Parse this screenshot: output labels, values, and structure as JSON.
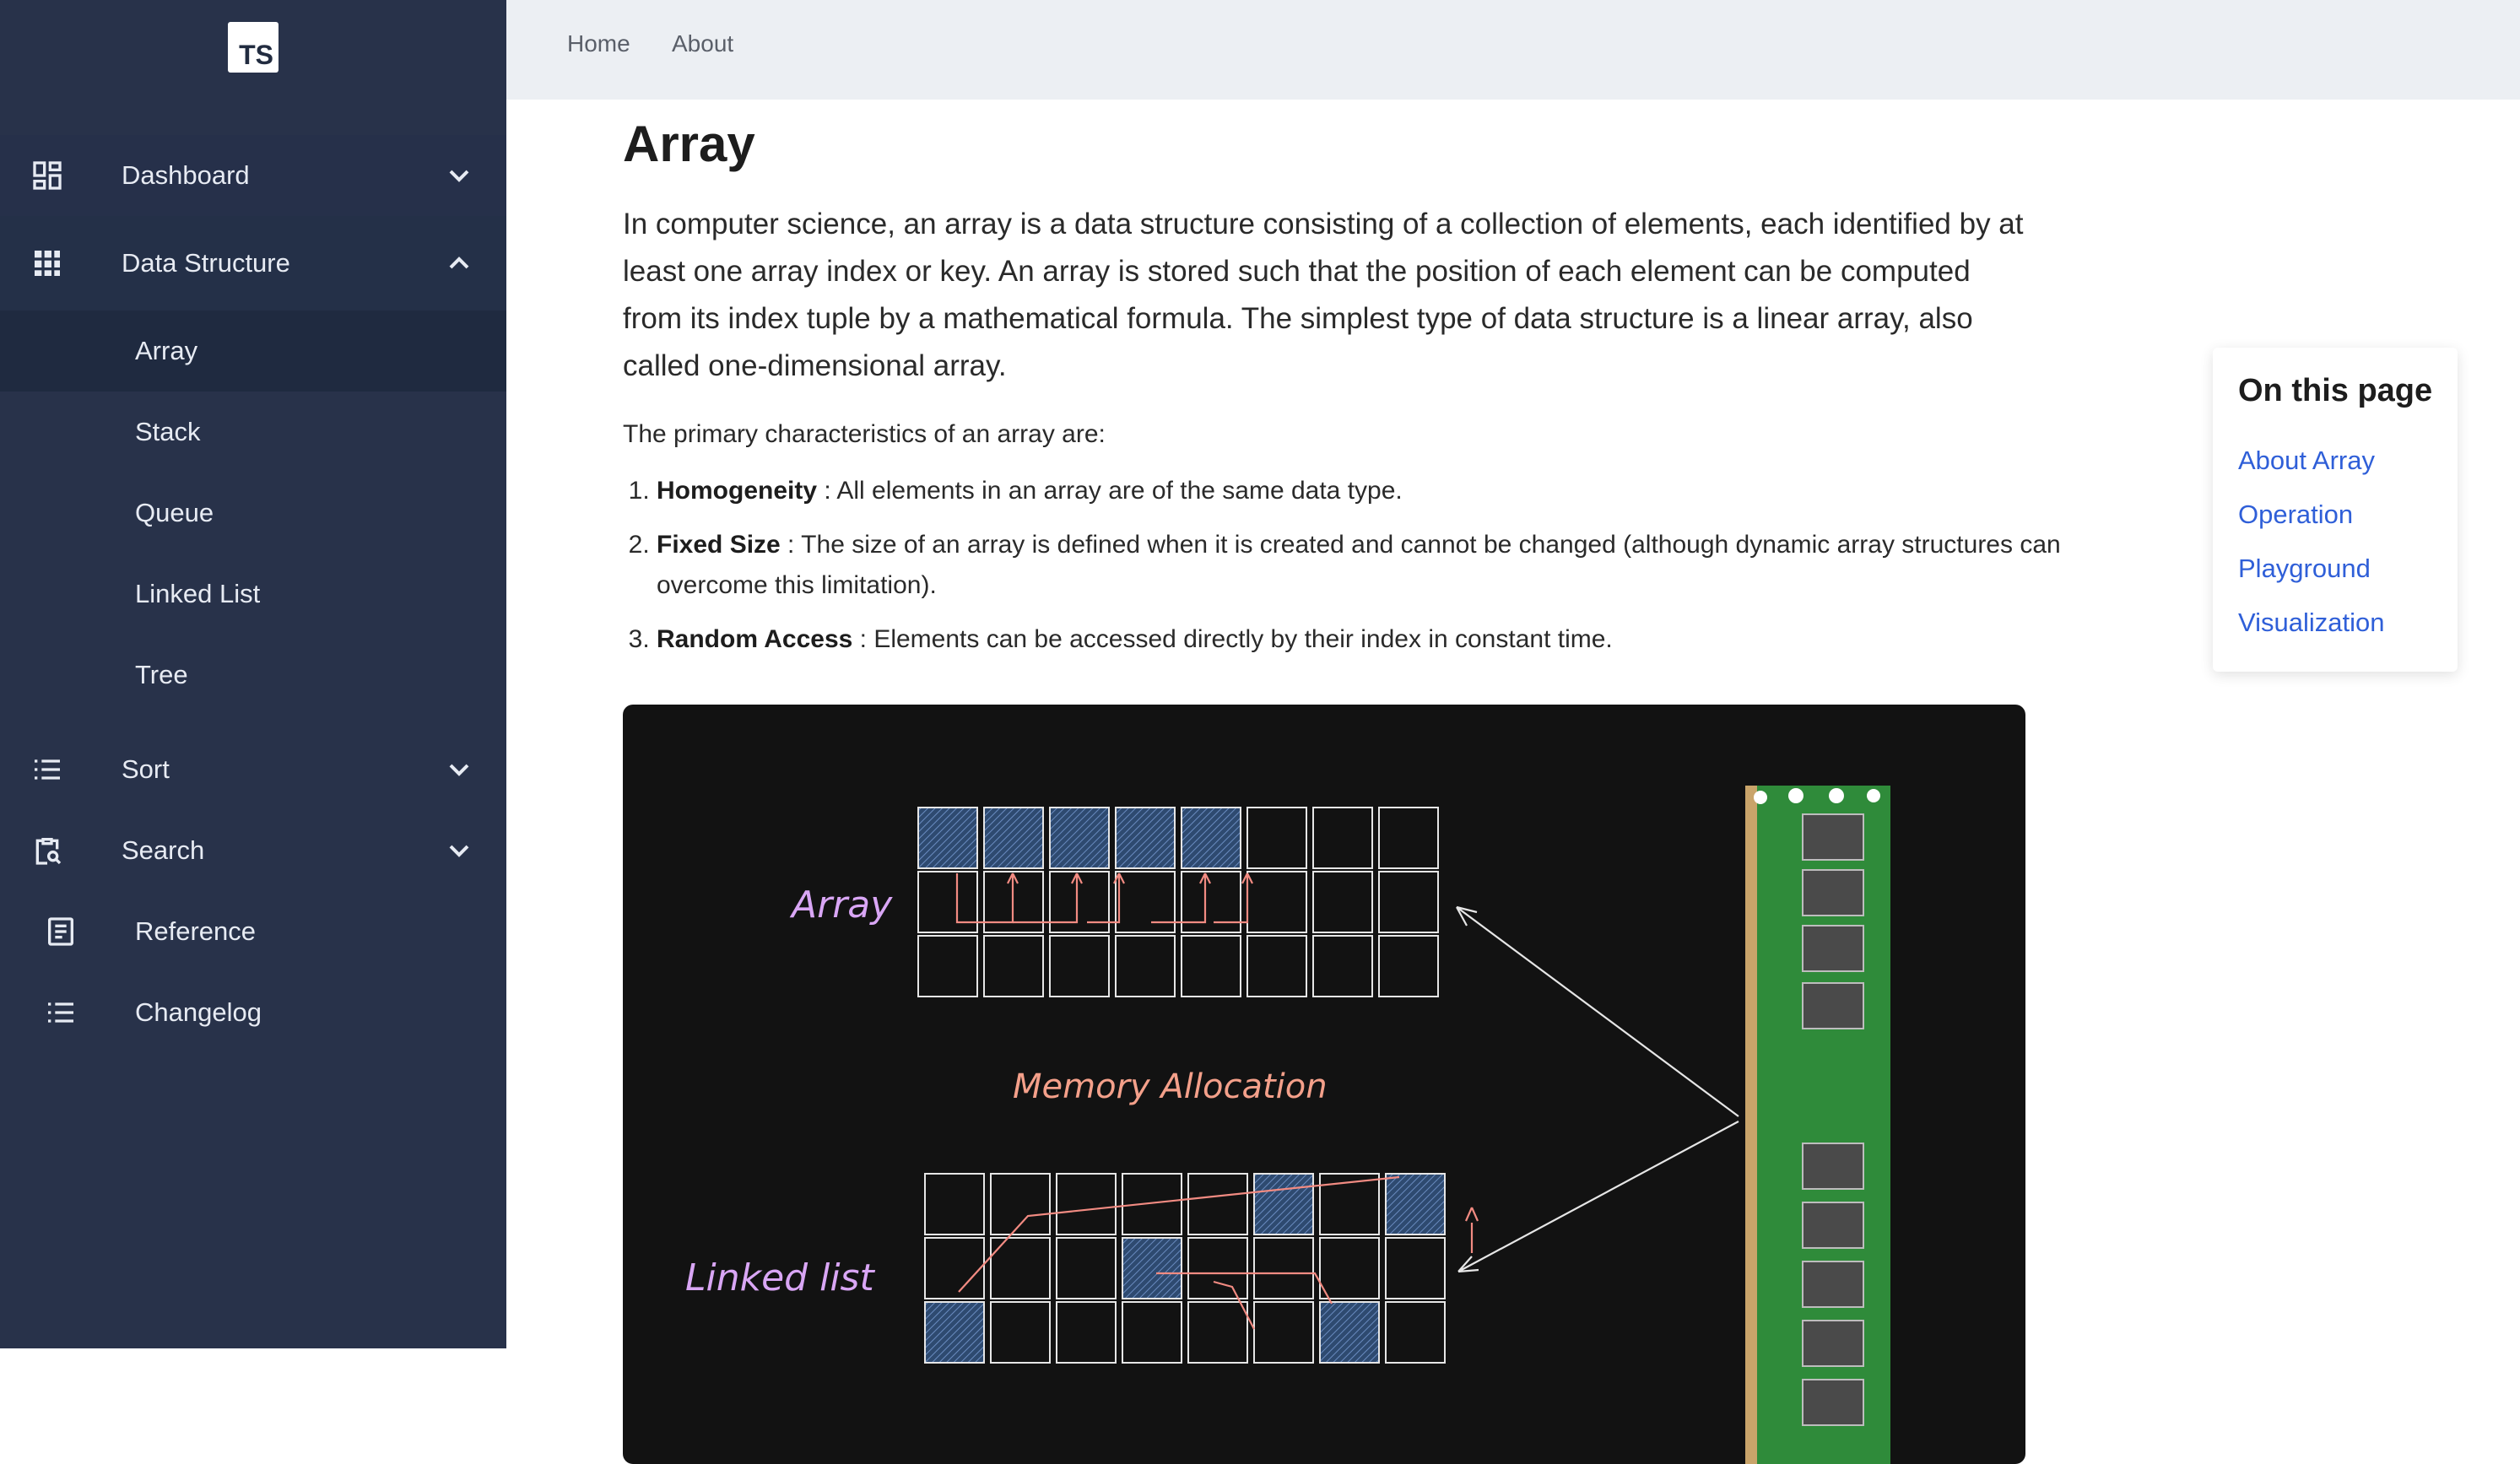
{
  "app": {
    "logo_text": "TS"
  },
  "topnav": {
    "items": [
      "Home",
      "About"
    ]
  },
  "sidebar": {
    "items": [
      {
        "label": "Dashboard",
        "icon": "dashboard-icon",
        "expanded": false
      },
      {
        "label": "Data Structure",
        "icon": "grid-icon",
        "expanded": true,
        "children": [
          "Array",
          "Stack",
          "Queue",
          "Linked List",
          "Tree"
        ],
        "selected": "Array"
      },
      {
        "label": "Sort",
        "icon": "list-icon",
        "expanded": false
      },
      {
        "label": "Search",
        "icon": "clipboard-search-icon",
        "expanded": false
      },
      {
        "label": "Reference",
        "icon": "document-icon"
      },
      {
        "label": "Changelog",
        "icon": "list-icon"
      }
    ]
  },
  "article": {
    "title": "Array",
    "intro": "In computer science, an array is a data structure consisting of a collection of elements, each identified by at least one array index or key. An array is stored such that the position of each element can be computed from its index tuple by a mathematical formula. The simplest type of data structure is a linear array, also called one-dimensional array.",
    "chars_lead": "The primary characteristics of an array are:",
    "chars": [
      {
        "term": "Homogeneity",
        "desc": " : All elements in an array are of the same data type."
      },
      {
        "term": "Fixed Size",
        "desc": " : The size of an array is defined when it is created and cannot be changed (although dynamic array structures can overcome this limitation)."
      },
      {
        "term": "Random Access",
        "desc": " : Elements can be accessed directly by their index in constant time."
      }
    ],
    "figure": {
      "label_array": "Array",
      "label_memory": "Memory Allocation",
      "label_linked": "Linked list"
    }
  },
  "toc": {
    "title": "On this page",
    "links": [
      "About Array",
      "Operation",
      "Playground",
      "Visualization"
    ]
  },
  "colors": {
    "sidebar_bg": "#28324a",
    "topbar_bg": "#eceff3",
    "link": "#2f5fd8",
    "figure_bg": "#121212",
    "highlight_cell": "#3d5a80",
    "arrow": "#f28b82",
    "label_purple": "#d9a6f5",
    "label_salmon": "#f4a08a"
  }
}
